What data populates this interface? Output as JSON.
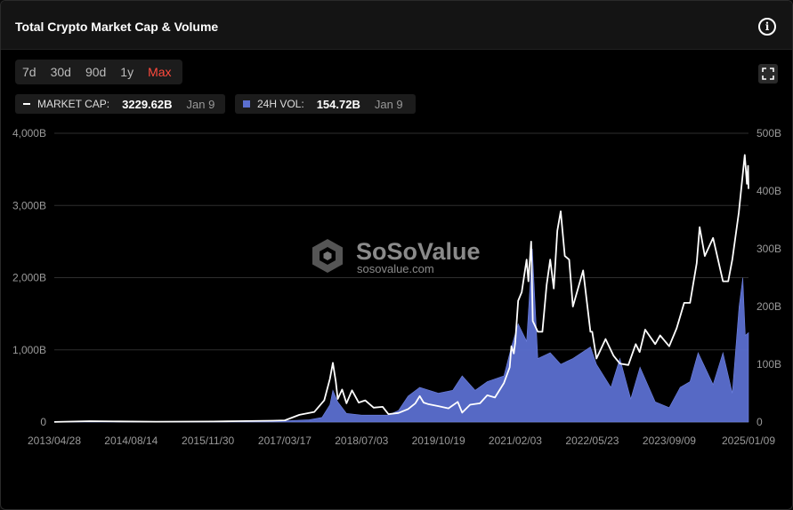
{
  "header": {
    "title": "Total Crypto Market Cap & Volume",
    "info_icon": "info-icon"
  },
  "ranges": [
    {
      "label": "7d",
      "active": false
    },
    {
      "label": "30d",
      "active": false
    },
    {
      "label": "90d",
      "active": false
    },
    {
      "label": "1y",
      "active": false
    },
    {
      "label": "Max",
      "active": true
    }
  ],
  "legend": {
    "market_cap": {
      "label": "MARKET CAP:",
      "value": "3229.62B",
      "date": "Jan 9"
    },
    "volume": {
      "label": "24H VOL:",
      "value": "154.72B",
      "date": "Jan 9"
    }
  },
  "watermark": {
    "name": "SoSoValue",
    "url": "sosovalue.com"
  },
  "colors": {
    "accent": "#ff4a3d",
    "market_cap_line": "#ffffff",
    "volume_fill": "#5b6fd0",
    "grid": "#2e2e2e"
  },
  "chart_data": {
    "type": "area",
    "title": "Total Crypto Market Cap & Volume",
    "x_tick_labels": [
      "2013/04/28",
      "2014/08/14",
      "2015/11/30",
      "2017/03/17",
      "2018/07/03",
      "2019/10/19",
      "2021/02/03",
      "2022/05/23",
      "2023/09/09",
      "2025/01/09"
    ],
    "y_left": {
      "ticks": [
        "0",
        "1,000B",
        "2,000B",
        "3,000B",
        "4,000B"
      ],
      "range": [
        0,
        4000
      ],
      "unit": "B"
    },
    "y_right": {
      "ticks": [
        "0",
        "100B",
        "200B",
        "300B",
        "400B",
        "500B"
      ],
      "range": [
        0,
        500
      ],
      "unit": "B"
    },
    "grid": true,
    "series": [
      {
        "name": "MARKET CAP",
        "axis": "left",
        "style": "line",
        "points": [
          [
            "2013-04-28",
            1.5
          ],
          [
            "2013-12-01",
            12
          ],
          [
            "2014-06-01",
            9
          ],
          [
            "2015-01-15",
            5
          ],
          [
            "2016-01-01",
            7
          ],
          [
            "2016-06-01",
            12
          ],
          [
            "2017-01-01",
            18
          ],
          [
            "2017-03-17",
            24
          ],
          [
            "2017-06-15",
            100
          ],
          [
            "2017-09-15",
            140
          ],
          [
            "2017-11-15",
            300
          ],
          [
            "2017-12-20",
            600
          ],
          [
            "2018-01-07",
            820
          ],
          [
            "2018-01-25",
            560
          ],
          [
            "2018-02-06",
            320
          ],
          [
            "2018-03-05",
            450
          ],
          [
            "2018-04-01",
            260
          ],
          [
            "2018-05-05",
            440
          ],
          [
            "2018-06-15",
            270
          ],
          [
            "2018-07-25",
            300
          ],
          [
            "2018-09-15",
            200
          ],
          [
            "2018-11-10",
            210
          ],
          [
            "2018-12-15",
            110
          ],
          [
            "2019-02-15",
            125
          ],
          [
            "2019-04-15",
            180
          ],
          [
            "2019-05-30",
            260
          ],
          [
            "2019-06-26",
            360
          ],
          [
            "2019-07-20",
            270
          ],
          [
            "2019-08-15",
            250
          ],
          [
            "2019-10-19",
            220
          ],
          [
            "2019-12-20",
            190
          ],
          [
            "2020-02-15",
            280
          ],
          [
            "2020-03-13",
            130
          ],
          [
            "2020-05-01",
            240
          ],
          [
            "2020-07-01",
            260
          ],
          [
            "2020-08-15",
            370
          ],
          [
            "2020-10-01",
            340
          ],
          [
            "2020-11-25",
            540
          ],
          [
            "2020-12-31",
            760
          ],
          [
            "2021-01-10",
            1050
          ],
          [
            "2021-01-25",
            950
          ],
          [
            "2021-02-03",
            1100
          ],
          [
            "2021-02-21",
            1680
          ],
          [
            "2021-03-15",
            1800
          ],
          [
            "2021-04-14",
            2250
          ],
          [
            "2021-04-25",
            1950
          ],
          [
            "2021-05-12",
            2500
          ],
          [
            "2021-05-22",
            1400
          ],
          [
            "2021-06-22",
            1250
          ],
          [
            "2021-07-20",
            1250
          ],
          [
            "2021-08-15",
            1900
          ],
          [
            "2021-09-06",
            2250
          ],
          [
            "2021-09-28",
            1850
          ],
          [
            "2021-10-20",
            2650
          ],
          [
            "2021-11-10",
            2920
          ],
          [
            "2021-12-05",
            2300
          ],
          [
            "2022-01-01",
            2250
          ],
          [
            "2022-01-24",
            1600
          ],
          [
            "2022-03-28",
            2100
          ],
          [
            "2022-05-12",
            1250
          ],
          [
            "2022-05-23",
            1250
          ],
          [
            "2022-06-18",
            880
          ],
          [
            "2022-08-13",
            1150
          ],
          [
            "2022-10-01",
            920
          ],
          [
            "2022-11-09",
            810
          ],
          [
            "2022-12-31",
            790
          ],
          [
            "2023-02-15",
            1080
          ],
          [
            "2023-03-11",
            970
          ],
          [
            "2023-04-14",
            1280
          ],
          [
            "2023-06-15",
            1080
          ],
          [
            "2023-07-15",
            1200
          ],
          [
            "2023-09-09",
            1050
          ],
          [
            "2023-10-25",
            1300
          ],
          [
            "2023-12-10",
            1650
          ],
          [
            "2024-01-15",
            1650
          ],
          [
            "2024-02-25",
            2200
          ],
          [
            "2024-03-14",
            2700
          ],
          [
            "2024-04-15",
            2300
          ],
          [
            "2024-06-05",
            2550
          ],
          [
            "2024-08-05",
            1950
          ],
          [
            "2024-09-06",
            1950
          ],
          [
            "2024-10-01",
            2250
          ],
          [
            "2024-11-10",
            2900
          ],
          [
            "2024-12-17",
            3700
          ],
          [
            "2024-12-30",
            3300
          ],
          [
            "2025-01-06",
            3550
          ],
          [
            "2025-01-09",
            3229.62
          ]
        ]
      },
      {
        "name": "24H VOL",
        "axis": "right",
        "style": "area",
        "points": [
          [
            "2013-04-28",
            0.1
          ],
          [
            "2014-06-01",
            0.5
          ],
          [
            "2016-01-01",
            0.8
          ],
          [
            "2017-03-17",
            2
          ],
          [
            "2017-08-15",
            4
          ],
          [
            "2017-11-01",
            8
          ],
          [
            "2017-12-20",
            30
          ],
          [
            "2018-01-07",
            55
          ],
          [
            "2018-02-06",
            35
          ],
          [
            "2018-04-01",
            15
          ],
          [
            "2018-07-03",
            12
          ],
          [
            "2018-12-15",
            12
          ],
          [
            "2019-02-15",
            20
          ],
          [
            "2019-04-15",
            45
          ],
          [
            "2019-06-26",
            60
          ],
          [
            "2019-10-19",
            50
          ],
          [
            "2020-01-15",
            55
          ],
          [
            "2020-03-13",
            80
          ],
          [
            "2020-06-01",
            55
          ],
          [
            "2020-08-15",
            70
          ],
          [
            "2020-11-25",
            80
          ],
          [
            "2021-01-10",
            130
          ],
          [
            "2021-02-21",
            170
          ],
          [
            "2021-04-14",
            140
          ],
          [
            "2021-05-19",
            300
          ],
          [
            "2021-06-22",
            110
          ],
          [
            "2021-09-06",
            120
          ],
          [
            "2021-11-10",
            100
          ],
          [
            "2022-01-24",
            110
          ],
          [
            "2022-05-12",
            130
          ],
          [
            "2022-06-18",
            100
          ],
          [
            "2022-09-15",
            60
          ],
          [
            "2022-11-09",
            110
          ],
          [
            "2023-01-15",
            40
          ],
          [
            "2023-03-13",
            95
          ],
          [
            "2023-06-15",
            35
          ],
          [
            "2023-09-09",
            25
          ],
          [
            "2023-11-15",
            60
          ],
          [
            "2024-01-15",
            70
          ],
          [
            "2024-03-05",
            120
          ],
          [
            "2024-06-05",
            65
          ],
          [
            "2024-08-05",
            120
          ],
          [
            "2024-10-01",
            50
          ],
          [
            "2024-11-12",
            200
          ],
          [
            "2024-12-05",
            250
          ],
          [
            "2024-12-20",
            150
          ],
          [
            "2025-01-09",
            154.72
          ]
        ]
      }
    ]
  }
}
